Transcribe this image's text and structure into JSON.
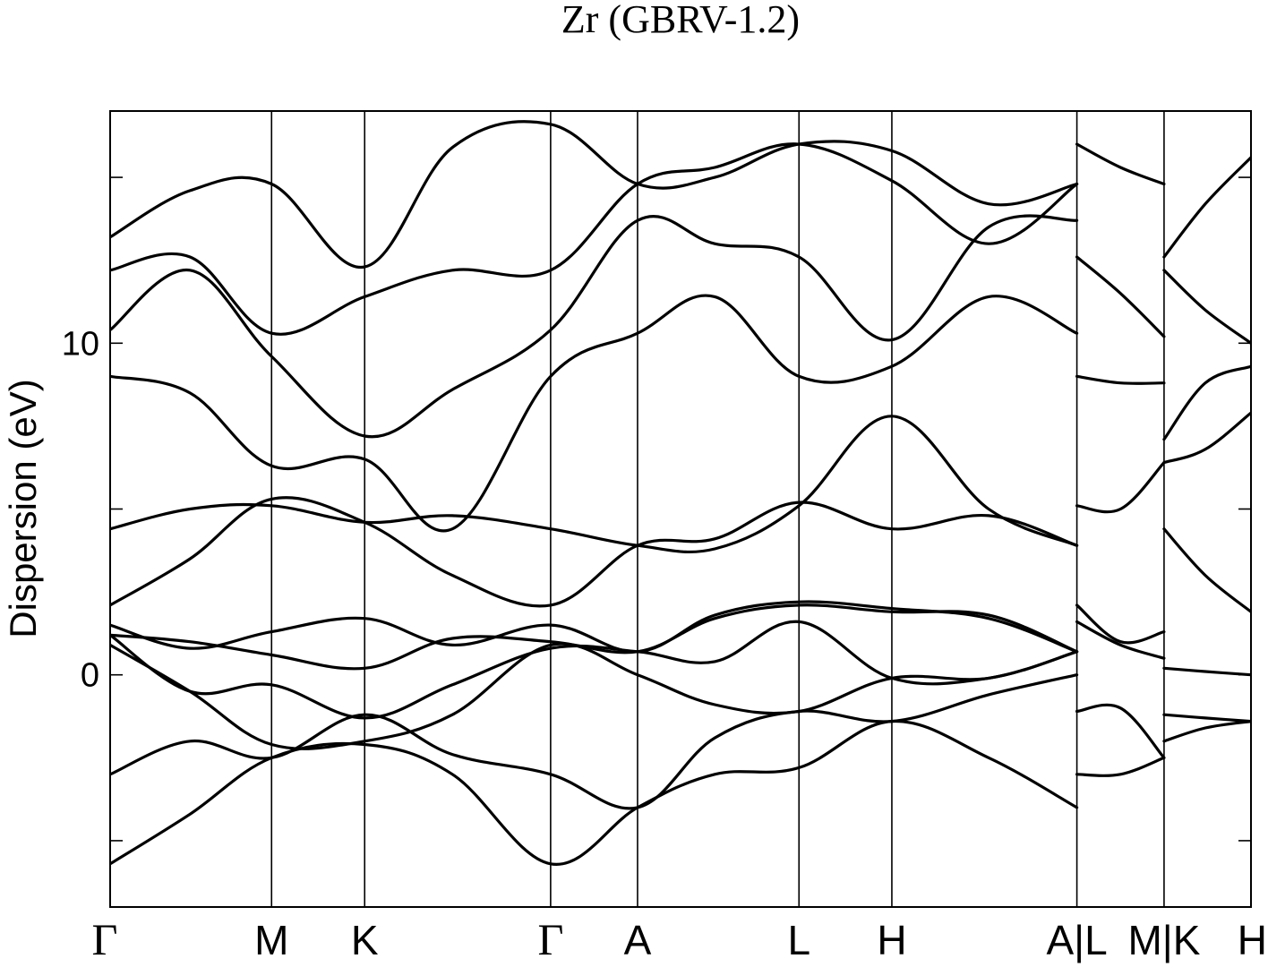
{
  "chart_data": {
    "type": "line",
    "title": "Zr (GBRV-1.2)",
    "xlabel": "",
    "ylabel": "Dispersion (eV)",
    "ylim": [
      -7,
      17
    ],
    "yticks": [
      -5,
      0,
      5,
      10,
      15
    ],
    "ytick_labels": [
      "",
      "0",
      "",
      "10",
      ""
    ],
    "grid": false,
    "x_range": [
      0,
      1
    ],
    "kpoints": [
      {
        "label": "Γ",
        "x": 0.0,
        "font": "serif"
      },
      {
        "label": "M",
        "x": 0.1415,
        "font": "sans"
      },
      {
        "label": "K",
        "x": 0.2231,
        "font": "sans"
      },
      {
        "label": "Γ",
        "x": 0.3861,
        "font": "serif"
      },
      {
        "label": "A",
        "x": 0.4623,
        "font": "sans"
      },
      {
        "label": "L",
        "x": 0.6038,
        "font": "sans"
      },
      {
        "label": "H",
        "x": 0.6852,
        "font": "sans"
      },
      {
        "label": "A|L",
        "x": 0.8474,
        "font": "sans"
      },
      {
        "label": "M|K",
        "x": 0.9238,
        "font": "sans"
      },
      {
        "label": "H",
        "x": 1.0,
        "font": "sans"
      }
    ],
    "series": [
      {
        "x": [
          0,
          0.07,
          0.1415,
          0.2231,
          0.3,
          0.3861,
          0.4623,
          0.53,
          0.6038,
          0.6852,
          0.77,
          0.8474
        ],
        "values": [
          -5.7,
          -4.2,
          -2.5,
          -2.1,
          -3.0,
          -5.7,
          -4.0,
          -3.0,
          -2.8,
          -1.4,
          -2.5,
          -4.0
        ]
      },
      {
        "x": [
          0,
          0.07,
          0.1415,
          0.2231,
          0.3,
          0.3861,
          0.4623,
          0.53,
          0.6038,
          0.6852,
          0.77,
          0.8474
        ],
        "values": [
          -3.0,
          -2.0,
          -2.5,
          -1.2,
          -2.4,
          -3.0,
          -4.0,
          -1.9,
          -1.1,
          -1.4,
          -0.6,
          0.0
        ]
      },
      {
        "x": [
          0,
          0.07,
          0.1415,
          0.2231,
          0.3,
          0.3861,
          0.4623,
          0.53,
          0.6038,
          0.6852,
          0.77,
          0.8474
        ],
        "values": [
          0.9,
          -0.5,
          -2.1,
          -2.0,
          -1.2,
          0.9,
          0.0,
          -0.9,
          -1.1,
          -0.1,
          -0.1,
          0.7
        ]
      },
      {
        "x": [
          0,
          0.07,
          0.1415,
          0.2231,
          0.3,
          0.3861,
          0.4623,
          0.53,
          0.6038,
          0.6852,
          0.77,
          0.8474
        ],
        "values": [
          1.2,
          -0.5,
          -0.3,
          -1.3,
          -0.3,
          0.8,
          0.7,
          0.4,
          1.6,
          -0.1,
          -0.1,
          0.7
        ]
      },
      {
        "x": [
          0,
          0.07,
          0.1415,
          0.2231,
          0.3,
          0.3861,
          0.4623,
          0.53,
          0.6038,
          0.6852,
          0.77,
          0.8474
        ],
        "values": [
          1.2,
          1.0,
          0.6,
          0.2,
          1.1,
          1.0,
          0.7,
          1.7,
          2.1,
          1.9,
          1.8,
          0.7
        ]
      },
      {
        "x": [
          0,
          0.07,
          0.1415,
          0.2231,
          0.3,
          0.3861,
          0.4623,
          0.53,
          0.6038,
          0.6852,
          0.77,
          0.8474
        ],
        "values": [
          1.5,
          0.8,
          1.3,
          1.7,
          0.9,
          1.5,
          0.7,
          1.8,
          2.2,
          2.0,
          1.7,
          0.7
        ]
      },
      {
        "x": [
          0,
          0.07,
          0.1415,
          0.2231,
          0.3,
          0.3861,
          0.4623,
          0.53,
          0.6038,
          0.6852,
          0.77,
          0.8474
        ],
        "values": [
          2.1,
          3.5,
          5.3,
          4.6,
          3.0,
          2.1,
          3.9,
          4.1,
          5.2,
          4.4,
          4.8,
          3.9
        ]
      },
      {
        "x": [
          0,
          0.07,
          0.1415,
          0.2231,
          0.3,
          0.3861,
          0.4623,
          0.53,
          0.6038,
          0.6852,
          0.77,
          0.8474
        ],
        "values": [
          4.4,
          5.0,
          5.1,
          4.6,
          4.8,
          4.4,
          3.9,
          3.8,
          5.1,
          7.8,
          5.0,
          3.9
        ]
      },
      {
        "x": [
          0,
          0.07,
          0.1415,
          0.2231,
          0.3,
          0.3861,
          0.4623,
          0.53,
          0.6038,
          0.6852,
          0.77,
          0.8474
        ],
        "values": [
          9.0,
          8.5,
          6.3,
          6.5,
          4.4,
          9.0,
          10.3,
          11.4,
          9.0,
          9.3,
          11.4,
          10.3
        ]
      },
      {
        "x": [
          0,
          0.07,
          0.1415,
          0.2231,
          0.3,
          0.3861,
          0.4623,
          0.53,
          0.6038,
          0.6852,
          0.77,
          0.8474
        ],
        "values": [
          10.4,
          12.2,
          9.6,
          7.2,
          8.6,
          10.4,
          13.7,
          13.0,
          12.6,
          10.1,
          13.5,
          13.7
        ]
      },
      {
        "x": [
          0,
          0.07,
          0.1415,
          0.2231,
          0.3,
          0.3861,
          0.4623,
          0.53,
          0.6038,
          0.6852,
          0.77,
          0.8474
        ],
        "values": [
          12.2,
          12.6,
          10.3,
          11.4,
          12.2,
          12.2,
          14.8,
          15.3,
          16.0,
          14.9,
          13.0,
          14.8
        ]
      },
      {
        "x": [
          0,
          0.07,
          0.1415,
          0.2231,
          0.3,
          0.3861,
          0.4623,
          0.53,
          0.6038,
          0.6852,
          0.77,
          0.8474
        ],
        "values": [
          13.2,
          14.6,
          14.8,
          12.3,
          15.9,
          16.6,
          14.8,
          15.0,
          16.0,
          15.8,
          14.2,
          14.8
        ]
      },
      {
        "x": [
          0.8474,
          0.8856,
          0.9238
        ],
        "values": [
          -1.1,
          -1.0,
          -2.5
        ]
      },
      {
        "x": [
          0.8474,
          0.8856,
          0.9238
        ],
        "values": [
          -3.0,
          -3.0,
          -2.5
        ]
      },
      {
        "x": [
          0.8474,
          0.8856,
          0.9238
        ],
        "values": [
          1.6,
          0.9,
          0.5
        ]
      },
      {
        "x": [
          0.8474,
          0.8856,
          0.9238
        ],
        "values": [
          2.1,
          1.0,
          1.3
        ]
      },
      {
        "x": [
          0.8474,
          0.8856,
          0.9238
        ],
        "values": [
          5.1,
          5.0,
          6.4
        ]
      },
      {
        "x": [
          0.8474,
          0.8856,
          0.9238
        ],
        "values": [
          9.0,
          8.8,
          8.8
        ]
      },
      {
        "x": [
          0.8474,
          0.8856,
          0.9238
        ],
        "values": [
          12.6,
          11.5,
          10.2
        ]
      },
      {
        "x": [
          0.8474,
          0.8856,
          0.9238
        ],
        "values": [
          16.0,
          15.3,
          14.8
        ]
      },
      {
        "x": [
          0.9238,
          0.96,
          1.0
        ],
        "values": [
          -1.2,
          -1.3,
          -1.4
        ]
      },
      {
        "x": [
          0.9238,
          0.96,
          1.0
        ],
        "values": [
          -2.0,
          -1.6,
          -1.4
        ]
      },
      {
        "x": [
          0.9238,
          0.96,
          1.0
        ],
        "values": [
          0.2,
          0.1,
          0.0
        ]
      },
      {
        "x": [
          0.9238,
          0.96,
          1.0
        ],
        "values": [
          4.4,
          3.0,
          1.9
        ]
      },
      {
        "x": [
          0.9238,
          0.96,
          1.0
        ],
        "values": [
          6.4,
          6.8,
          7.9
        ]
      },
      {
        "x": [
          0.9238,
          0.96,
          1.0
        ],
        "values": [
          7.1,
          8.8,
          9.3
        ]
      },
      {
        "x": [
          0.9238,
          0.96,
          1.0
        ],
        "values": [
          12.2,
          11.0,
          10.0
        ]
      },
      {
        "x": [
          0.9238,
          0.96,
          1.0
        ],
        "values": [
          12.6,
          14.2,
          15.6
        ]
      }
    ]
  }
}
